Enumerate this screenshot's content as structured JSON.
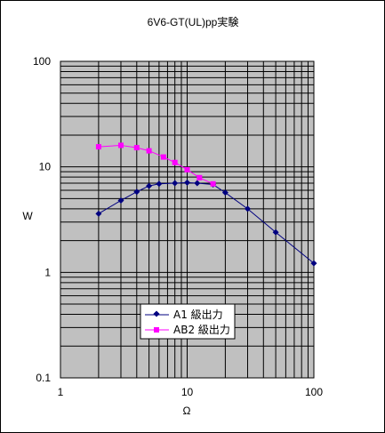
{
  "chart_data": {
    "type": "line",
    "title": "6V6-GT(UL)pp実験",
    "xlabel": "Ω",
    "ylabel": "W",
    "x_scale": "log",
    "y_scale": "log",
    "xlim": [
      1,
      100
    ],
    "ylim": [
      0.1,
      100
    ],
    "x_tick_labels": [
      "1",
      "10",
      "100"
    ],
    "y_tick_labels": [
      "0.1",
      "1",
      "10",
      "100"
    ],
    "grid": true,
    "legend_position": "center-left, lower half",
    "series": [
      {
        "name": "A1 級出力",
        "color": "#000080",
        "marker": "diamond",
        "x": [
          2,
          3,
          4,
          5,
          6,
          8,
          10,
          12,
          16,
          20,
          30,
          50,
          100
        ],
        "y": [
          3.6,
          4.8,
          5.8,
          6.6,
          6.9,
          7.0,
          7.1,
          7.0,
          6.8,
          5.7,
          4.0,
          2.4,
          1.22
        ]
      },
      {
        "name": "AB2 級出力",
        "color": "#FF00FF",
        "marker": "square",
        "x": [
          2,
          3,
          4,
          5,
          6.5,
          8,
          10,
          12.5,
          16
        ],
        "y": [
          15.5,
          16.0,
          15.2,
          14.2,
          12.4,
          11.0,
          9.4,
          7.9,
          6.9
        ]
      }
    ]
  }
}
